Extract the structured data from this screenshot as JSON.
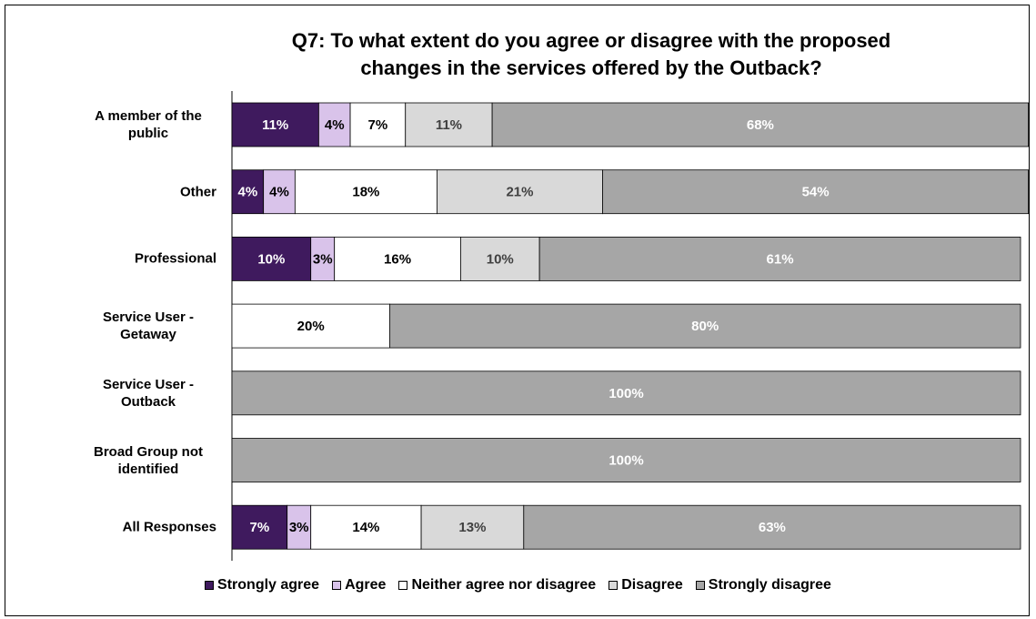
{
  "chart_data": {
    "type": "stacked-bar-horizontal",
    "title": "Q7: To what extent do you agree or disagree with the proposed changes in the services offered by the Outback?",
    "categories": [
      "A member of the public",
      "Other",
      "Professional",
      "Service User - Getaway",
      "Service User - Outback",
      "Broad Group not identified",
      "All Responses"
    ],
    "xlim": [
      0,
      100
    ],
    "series": [
      {
        "name": "Strongly agree",
        "color": "#3f1a5e",
        "label_color": "#ffffff",
        "values": [
          11,
          4,
          10,
          0,
          0,
          0,
          7
        ],
        "value_labels": [
          "11%",
          "4%",
          "10%",
          null,
          null,
          null,
          "7%"
        ]
      },
      {
        "name": "Agree",
        "color": "#d9c3ea",
        "label_color": "#000000",
        "values": [
          4,
          4,
          3,
          0,
          0,
          0,
          3
        ],
        "value_labels": [
          "4%",
          "4%",
          "3%",
          null,
          null,
          null,
          "3%"
        ]
      },
      {
        "name": "Neither agree nor disagree",
        "color": "#ffffff",
        "label_color": "#000000",
        "values": [
          7,
          18,
          16,
          20,
          0,
          0,
          14
        ],
        "value_labels": [
          "7%",
          "18%",
          "16%",
          "20%",
          null,
          null,
          "14%"
        ]
      },
      {
        "name": "Disagree",
        "color": "#d9d9d9",
        "label_color": "#404040",
        "values": [
          11,
          21,
          10,
          0,
          0,
          0,
          13
        ],
        "value_labels": [
          "11%",
          "21%",
          "10%",
          null,
          null,
          null,
          "13%"
        ]
      },
      {
        "name": "Strongly disagree",
        "color": "#a6a6a6",
        "label_color": "#ffffff",
        "values": [
          68,
          54,
          61,
          80,
          100,
          100,
          63
        ],
        "value_labels": [
          "68%",
          "54%",
          "61%",
          "80%",
          "100%",
          "100%",
          "63%"
        ]
      }
    ]
  }
}
